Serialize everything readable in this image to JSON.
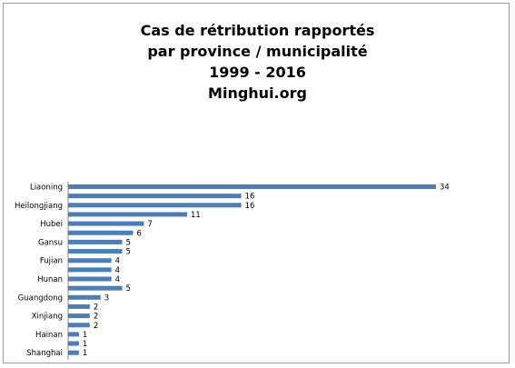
{
  "chart_data": {
    "type": "bar",
    "orientation": "horizontal",
    "title_lines": [
      "Cas de rétribution rapportés",
      "par province / municipalité",
      "1999 - 2016",
      "Minghui.org"
    ],
    "bar_color": "#4a7ebb",
    "categories": [
      "Liaoning",
      "",
      "Heilongjiang",
      "",
      "Hubei",
      "",
      "Gansu",
      "",
      "Fujian",
      "",
      "Hunan",
      "",
      "Guangdong",
      "",
      "Xinjiang",
      "",
      "Hainan",
      "",
      "Shanghai"
    ],
    "values": [
      34,
      16,
      16,
      11,
      7,
      6,
      5,
      5,
      4,
      4,
      4,
      5,
      3,
      2,
      2,
      2,
      1,
      1,
      1
    ],
    "xlim": [
      0,
      34
    ],
    "grid": false,
    "legend": "none"
  }
}
